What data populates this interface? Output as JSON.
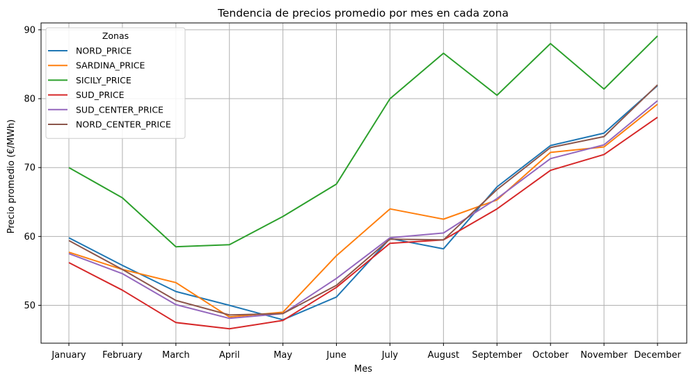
{
  "chart_data": {
    "type": "line",
    "title": "Tendencia de precios promedio por mes en cada zona",
    "xlabel": "Mes",
    "ylabel": "Precio promedio (€/MWh)",
    "categories": [
      "January",
      "February",
      "March",
      "April",
      "May",
      "June",
      "July",
      "August",
      "September",
      "October",
      "November",
      "December"
    ],
    "ylim": [
      44.5,
      91
    ],
    "yticks": [
      50,
      60,
      70,
      80,
      90
    ],
    "grid": true,
    "legend": {
      "title": "Zonas",
      "placement": "top-left"
    },
    "series": [
      {
        "name": "NORD_PRICE",
        "color": "#1f77b4",
        "values": [
          59.8,
          55.8,
          52.0,
          50.0,
          47.9,
          51.2,
          59.7,
          58.2,
          67.2,
          73.2,
          75.0,
          81.9
        ]
      },
      {
        "name": "SARDINA_PRICE",
        "color": "#ff7f0e",
        "values": [
          57.7,
          55.2,
          53.3,
          48.3,
          49.0,
          57.2,
          64.0,
          62.5,
          65.3,
          72.2,
          73.0,
          79.2
        ]
      },
      {
        "name": "SICILY_PRICE",
        "color": "#2ca02c",
        "values": [
          70.0,
          65.6,
          58.5,
          58.8,
          62.9,
          67.6,
          80.0,
          86.6,
          80.5,
          88.0,
          81.4,
          89.1
        ]
      },
      {
        "name": "SUD_PRICE",
        "color": "#d62728",
        "values": [
          56.2,
          52.2,
          47.5,
          46.6,
          47.8,
          52.6,
          59.0,
          59.5,
          64.0,
          69.6,
          71.9,
          77.3
        ]
      },
      {
        "name": "SUD_CENTER_PRICE",
        "color": "#9467bd",
        "values": [
          57.5,
          54.6,
          50.1,
          48.1,
          48.8,
          53.9,
          59.8,
          60.5,
          65.5,
          71.3,
          73.3,
          79.7
        ]
      },
      {
        "name": "NORD_CENTER_PRICE",
        "color": "#8c564b",
        "values": [
          59.4,
          55.2,
          50.7,
          48.6,
          48.8,
          52.9,
          59.6,
          59.5,
          66.8,
          72.9,
          74.5,
          82.0
        ]
      }
    ]
  }
}
